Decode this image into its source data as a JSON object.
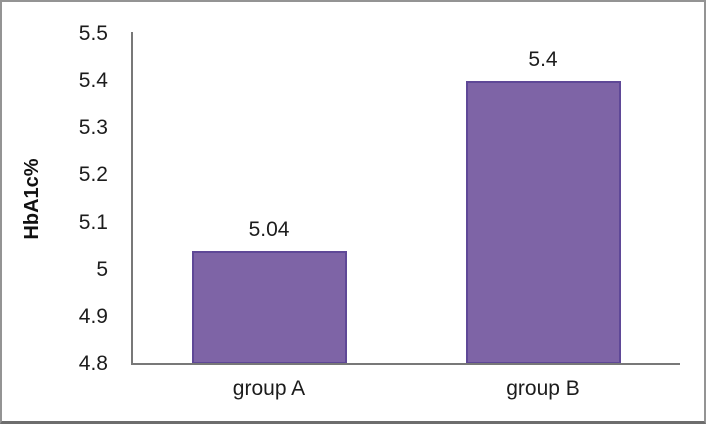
{
  "chart_data": {
    "type": "bar",
    "categories": [
      "group A",
      "group B"
    ],
    "values": [
      5.04,
      5.4
    ],
    "value_labels": [
      "5.04",
      "5.4"
    ],
    "ylabel": "HbA1c%",
    "ytick_values": [
      5.5,
      5.4,
      5.3,
      5.2,
      5.1,
      5.0,
      4.9,
      4.8
    ],
    "ytick_labels": [
      "5.5",
      "5.4",
      "5.3",
      "5.2",
      "5.1",
      "5",
      "4.9",
      "4.8"
    ],
    "ylim": [
      4.8,
      5.5
    ],
    "grid": false,
    "legend": false,
    "bar_color": "#7e64a6",
    "bar_border_color": "#5f4897",
    "axis_color": "#787878"
  }
}
